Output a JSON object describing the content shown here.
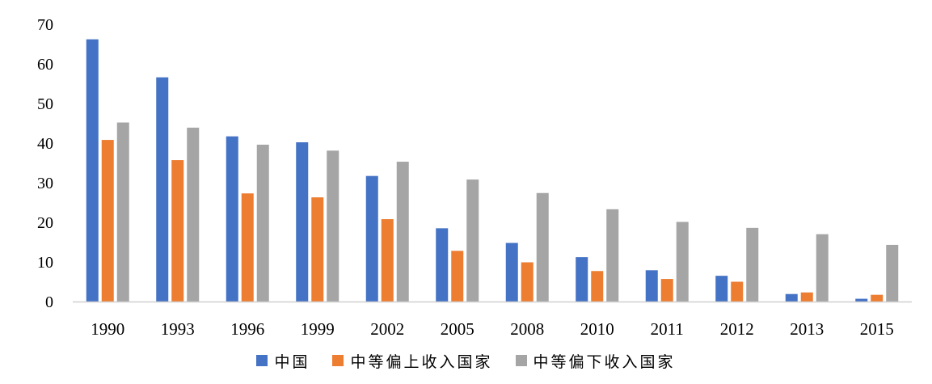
{
  "chart_data": {
    "type": "bar",
    "categories": [
      "1990",
      "1993",
      "1996",
      "1999",
      "2002",
      "2005",
      "2008",
      "2010",
      "2011",
      "2012",
      "2013",
      "2015"
    ],
    "ylim": [
      0,
      70
    ],
    "yticks": [
      0,
      10,
      20,
      30,
      40,
      50,
      60,
      70
    ],
    "grid": false,
    "legend_position": "bottom",
    "series": [
      {
        "name": "中国",
        "color": "#4472C4",
        "values": [
          66.2,
          56.6,
          41.7,
          40.2,
          31.7,
          18.5,
          14.8,
          11.2,
          7.9,
          6.5,
          1.9,
          0.7
        ]
      },
      {
        "name": "中等偏上收入国家",
        "color": "#ED7D31",
        "values": [
          40.8,
          35.7,
          27.3,
          26.3,
          20.8,
          12.8,
          9.9,
          7.7,
          5.7,
          5.0,
          2.3,
          1.7
        ]
      },
      {
        "name": "中等偏下收入国家",
        "color": "#A5A5A5",
        "values": [
          45.2,
          43.9,
          39.6,
          38.1,
          35.3,
          30.8,
          27.4,
          23.3,
          20.1,
          18.6,
          17.0,
          14.3
        ]
      }
    ]
  }
}
